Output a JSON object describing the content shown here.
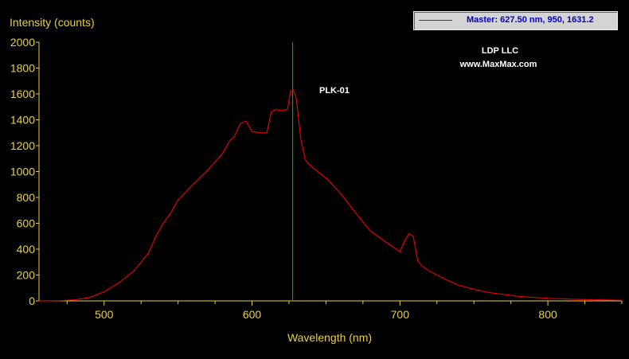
{
  "chart_data": {
    "type": "line",
    "ylabel": "Intensity (counts)",
    "xlabel": "Wavelength (nm)",
    "xlim": [
      456,
      850
    ],
    "ylim": [
      0,
      2000
    ],
    "x_ticks": [
      500,
      600,
      700,
      800
    ],
    "y_ticks": [
      0,
      200,
      400,
      600,
      800,
      1000,
      1200,
      1400,
      1600,
      1800,
      2000
    ],
    "annotations": [
      "LDP LLC",
      "www.MaxMax.com",
      "PLK-01"
    ],
    "legend": "Master: 627.50 nm, 950, 1631.2",
    "cursor_x": 627.5,
    "colors": {
      "series": "#e00000",
      "cursor": "#00c800",
      "axis": "#e8d040",
      "background": "#000000"
    },
    "series": [
      {
        "x": [
          456,
          470,
          480,
          490,
          500,
          510,
          520,
          530,
          535,
          540,
          545,
          550,
          560,
          570,
          580,
          585,
          588,
          592,
          596,
          600,
          605,
          610,
          613,
          616,
          620,
          624,
          626,
          628,
          630,
          633,
          636,
          640,
          650,
          660,
          670,
          680,
          690,
          700,
          703,
          706,
          709,
          712,
          715,
          720,
          730,
          740,
          750,
          760,
          780,
          800,
          820,
          850
        ],
        "y": [
          0,
          2,
          8,
          25,
          70,
          140,
          230,
          370,
          500,
          600,
          680,
          780,
          900,
          1010,
          1140,
          1240,
          1270,
          1370,
          1390,
          1310,
          1300,
          1300,
          1460,
          1480,
          1470,
          1480,
          1620,
          1631,
          1560,
          1250,
          1090,
          1040,
          950,
          830,
          680,
          540,
          460,
          380,
          460,
          520,
          500,
          310,
          270,
          230,
          170,
          120,
          90,
          65,
          35,
          20,
          12,
          5
        ]
      }
    ]
  }
}
